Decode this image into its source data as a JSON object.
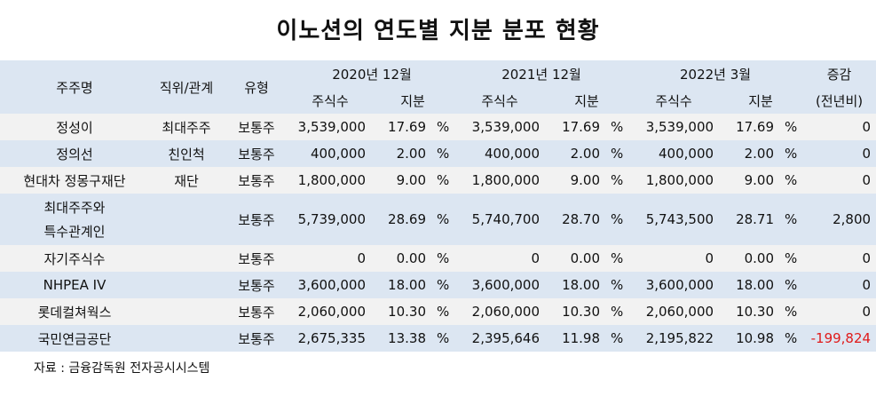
{
  "title": "이노션의 연도별 지분 분포 현황",
  "header": {
    "shareholder": "주주명",
    "position": "직위/관계",
    "type": "유형",
    "period1": "2020년 12월",
    "period2": "2021년 12월",
    "period3": "2022년 3월",
    "change": "증감",
    "change_sub": "(전년비)",
    "shares": "주식수",
    "stake": "지분"
  },
  "rows": [
    {
      "name": "정성이",
      "position": "최대주주",
      "type": "보통주",
      "s1": "3,539,000",
      "p1": "17.69",
      "s2": "3,539,000",
      "p2": "17.69",
      "s3": "3,539,000",
      "p3": "17.69",
      "change": "0"
    },
    {
      "name": "정의선",
      "position": "친인척",
      "type": "보통주",
      "s1": "400,000",
      "p1": "2.00",
      "s2": "400,000",
      "p2": "2.00",
      "s3": "400,000",
      "p3": "2.00",
      "change": "0"
    },
    {
      "name": "현대차 정몽구재단",
      "position": "재단",
      "type": "보통주",
      "s1": "1,800,000",
      "p1": "9.00",
      "s2": "1,800,000",
      "p2": "9.00",
      "s3": "1,800,000",
      "p3": "9.00",
      "change": "0"
    },
    {
      "name": "최대주주와",
      "name2": "특수관계인",
      "position": "",
      "type": "보통주",
      "s1": "5,739,000",
      "p1": "28.69",
      "s2": "5,740,700",
      "p2": "28.70",
      "s3": "5,743,500",
      "p3": "28.71",
      "change": "2,800"
    },
    {
      "name": "자기주식수",
      "position": "",
      "type": "보통주",
      "s1": "0",
      "p1": "0.00",
      "s2": "0",
      "p2": "0.00",
      "s3": "0",
      "p3": "0.00",
      "change": "0"
    },
    {
      "name": "NHPEA IV",
      "position": "",
      "type": "보통주",
      "s1": "3,600,000",
      "p1": "18.00",
      "s2": "3,600,000",
      "p2": "18.00",
      "s3": "3,600,000",
      "p3": "18.00",
      "change": "0"
    },
    {
      "name": "롯데컬쳐웍스",
      "position": "",
      "type": "보통주",
      "s1": "2,060,000",
      "p1": "10.30",
      "s2": "2,060,000",
      "p2": "10.30",
      "s3": "2,060,000",
      "p3": "10.30",
      "change": "0"
    },
    {
      "name": "국민연금공단",
      "position": "",
      "type": "보통주",
      "s1": "2,675,335",
      "p1": "13.38",
      "s2": "2,395,646",
      "p2": "11.98",
      "s3": "2,195,822",
      "p3": "10.98",
      "change": "-199,824"
    }
  ],
  "percent_sign": "%",
  "source": "자료 : 금융감독원 전자공시시스템",
  "colors": {
    "header_bg": "#dce6f2",
    "alt_bg": "#f2f2f2",
    "negative": "#e01a1a"
  }
}
